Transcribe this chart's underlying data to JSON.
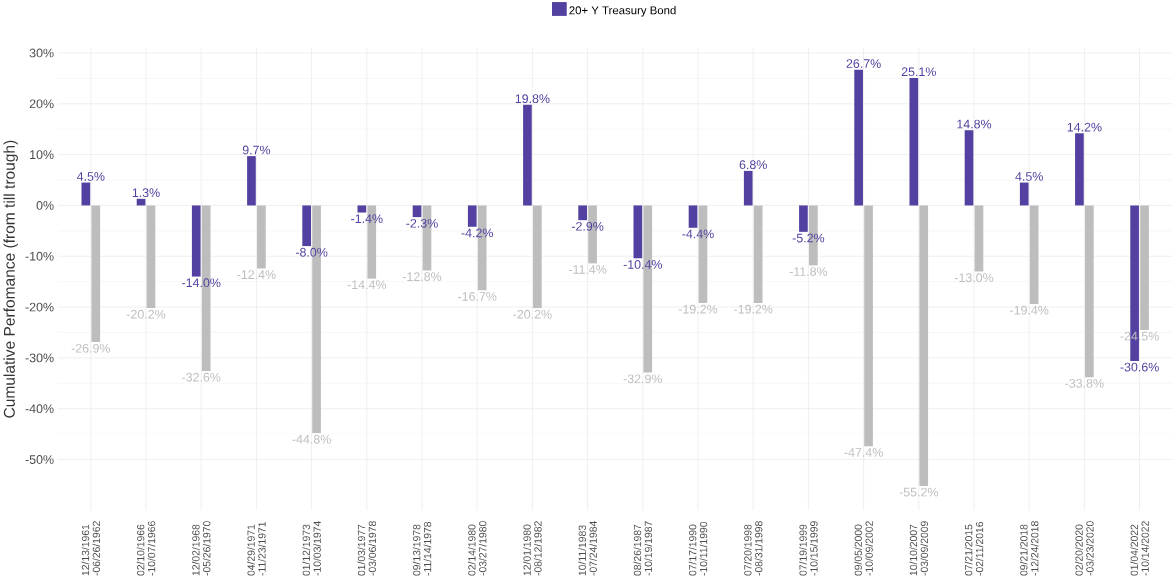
{
  "chart_data": {
    "type": "bar",
    "ylabel": "Cumulative Perfomance (from till trough)",
    "categories": [
      "12/13/1961 -06/26/1962",
      "02/10/1966 -10/07/1966",
      "12/02/1968 -05/26/1970",
      "04/29/1971 -11/23/1971",
      "01/12/1973 -10/03/1974",
      "01/03/1977 -03/06/1978",
      "09/13/1978 -11/14/1978",
      "02/14/1980 -03/27/1980",
      "12/01/1980 -08/12/1982",
      "10/11/1983 -07/24/1984",
      "08/26/1987 -10/19/1987",
      "07/17/1990 -10/11/1990",
      "07/20/1998 -08/31/1998",
      "07/19/1999 -10/15/1999",
      "09/05/2000 -10/09/2002",
      "10/10/2007 -03/09/2009",
      "07/21/2015 -02/11/2016",
      "09/21/2018 -12/24/2018",
      "02/20/2020 -03/23/2020",
      "01/04/2022 -10/14/2022"
    ],
    "series": [
      {
        "name": "20+ Y Treasury Bond",
        "color": "#5340a0",
        "values": [
          4.5,
          1.3,
          -14.0,
          9.7,
          -8.0,
          -1.4,
          -2.3,
          -4.2,
          19.8,
          -2.9,
          -10.4,
          -4.4,
          6.8,
          -5.2,
          26.7,
          25.1,
          14.8,
          4.5,
          14.2,
          -30.6
        ],
        "value_labels": [
          "4.5%",
          "1.3%",
          "-14.0%",
          "9.7%",
          "-8.0%",
          "-1.4%",
          "-2.3%",
          "-4.2%",
          "19.8%",
          "-2.9%",
          "-10.4%",
          "-4.4%",
          "6.8%",
          "-5.2%",
          "26.7%",
          "25.1%",
          "14.8%",
          "4.5%",
          "14.2%",
          "-30.6%"
        ]
      },
      {
        "color": "#bdbdbd",
        "values": [
          -26.9,
          -20.2,
          -32.6,
          -12.4,
          -44.8,
          -14.4,
          -12.8,
          -16.7,
          -20.2,
          -11.4,
          -32.9,
          -19.2,
          -19.2,
          -11.8,
          -47.4,
          -55.2,
          -13.0,
          -19.4,
          -33.8,
          -24.5
        ],
        "value_labels": [
          "-26.9%",
          "-20.2%",
          "-32.6%",
          "-12.4%",
          "-44.8%",
          "-14.4%",
          "-12.8%",
          "-16.7%",
          "-20.2%",
          "-11.4%",
          "-32.9%",
          "-19.2%",
          "-19.2%",
          "-11.8%",
          "-47.4%",
          "-55.2%",
          "-13.0%",
          "-19.4%",
          "-33.8%",
          "-24.5%"
        ]
      }
    ],
    "ylim": [
      -60,
      31
    ],
    "yticks": [
      {
        "value": -50,
        "label": "-50%"
      },
      {
        "value": -40,
        "label": "-40%"
      },
      {
        "value": -30,
        "label": "-30%"
      },
      {
        "value": -20,
        "label": "-20%"
      },
      {
        "value": -10,
        "label": "-10%"
      },
      {
        "value": 0,
        "label": "0%"
      },
      {
        "value": 10,
        "label": "10%"
      },
      {
        "value": 20,
        "label": "20%"
      },
      {
        "value": 30,
        "label": "30%"
      }
    ],
    "grid": true,
    "legend": "top"
  }
}
